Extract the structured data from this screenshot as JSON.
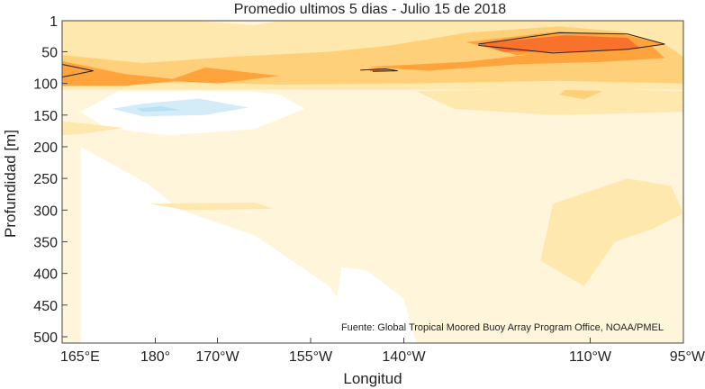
{
  "chart_data": {
    "type": "heatmap",
    "title": "Promedio ultimos 5 dias - Julio 15 de 2018",
    "xlabel": "Longitud",
    "ylabel": "Profundidad [m]",
    "source": "Fuente: Global Tropical Moored Buoy Array Program Office, NOAA/PMEL",
    "x_ticks": [
      {
        "lon": 165,
        "label": "165°E"
      },
      {
        "lon": 180,
        "label": "180°"
      },
      {
        "lon": 190,
        "label": "170°W"
      },
      {
        "lon": 205,
        "label": "155°W"
      },
      {
        "lon": 220,
        "label": "140°W"
      },
      {
        "lon": 250,
        "label": "110°W"
      },
      {
        "lon": 265,
        "label": "95°W"
      }
    ],
    "y_ticks": [
      {
        "depth": 1,
        "label": "1"
      },
      {
        "depth": 50,
        "label": "50"
      },
      {
        "depth": 100,
        "label": "100"
      },
      {
        "depth": 150,
        "label": "150"
      },
      {
        "depth": 200,
        "label": "200"
      },
      {
        "depth": 250,
        "label": "250"
      },
      {
        "depth": 300,
        "label": "300"
      },
      {
        "depth": 350,
        "label": "350"
      },
      {
        "depth": 400,
        "label": "400"
      },
      {
        "depth": 450,
        "label": "450"
      },
      {
        "depth": 500,
        "label": "500"
      }
    ],
    "xlim": [
      165,
      265
    ],
    "ylim": [
      1,
      510
    ],
    "y_reversed": true,
    "grid": false,
    "levels": [
      {
        "level": "white",
        "color": "#ffffff"
      },
      {
        "level": "pale",
        "color": "#fff5da"
      },
      {
        "level": "light",
        "color": "#ffe8ae"
      },
      {
        "level": "mid",
        "color": "#ffd07a"
      },
      {
        "level": "high",
        "color": "#ffa33c"
      },
      {
        "level": "peak",
        "color": "#f9722b"
      },
      {
        "level": "cool",
        "color": "#d3ecf8"
      },
      {
        "level": "cooler",
        "color": "#b5e1f6"
      }
    ],
    "regions": [
      {
        "level": "light",
        "points": [
          [
            165,
            1
          ],
          [
            265,
            1
          ],
          [
            265,
            110
          ],
          [
            165,
            110
          ]
        ]
      },
      {
        "level": "mid",
        "points": [
          [
            165,
            55
          ],
          [
            178,
            68
          ],
          [
            192,
            58
          ],
          [
            208,
            50
          ],
          [
            218,
            40
          ],
          [
            230,
            20
          ],
          [
            245,
            10
          ],
          [
            255,
            18
          ],
          [
            262,
            38
          ],
          [
            265,
            58
          ],
          [
            265,
            100
          ],
          [
            245,
            96
          ],
          [
            222,
            100
          ],
          [
            200,
            102
          ],
          [
            185,
            98
          ],
          [
            165,
            104
          ]
        ]
      },
      {
        "level": "light",
        "points": [
          [
            178,
            35
          ],
          [
            192,
            30
          ],
          [
            208,
            22
          ],
          [
            218,
            18
          ],
          [
            208,
            40
          ],
          [
            192,
            45
          ]
        ]
      },
      {
        "level": "high",
        "points": [
          [
            165,
            65
          ],
          [
            175,
            85
          ],
          [
            185,
            95
          ],
          [
            175,
            104
          ],
          [
            165,
            104
          ]
        ]
      },
      {
        "level": "high",
        "points": [
          [
            188,
            75
          ],
          [
            200,
            88
          ],
          [
            190,
            100
          ],
          [
            182,
            96
          ]
        ]
      },
      {
        "level": "high",
        "points": [
          [
            214,
            74
          ],
          [
            230,
            66
          ],
          [
            244,
            50
          ],
          [
            260,
            42
          ],
          [
            262,
            60
          ],
          [
            252,
            66
          ],
          [
            238,
            70
          ],
          [
            224,
            80
          ]
        ]
      },
      {
        "level": "high",
        "points": [
          [
            230,
            35
          ],
          [
            245,
            18
          ],
          [
            255,
            22
          ],
          [
            262,
            38
          ],
          [
            252,
            52
          ],
          [
            238,
            55
          ]
        ]
      },
      {
        "level": "peak",
        "points": [
          [
            232,
            37
          ],
          [
            246,
            24
          ],
          [
            256,
            28
          ],
          [
            258,
            45
          ],
          [
            248,
            50
          ],
          [
            236,
            50
          ]
        ]
      },
      {
        "level": "peak",
        "points": [
          [
            214,
            78
          ],
          [
            216,
            76
          ],
          [
            218,
            79
          ],
          [
            215,
            81
          ]
        ]
      },
      {
        "level": "light",
        "points": [
          [
            165,
            1
          ],
          [
            172,
            1
          ],
          [
            184,
            8
          ],
          [
            196,
            12
          ],
          [
            186,
            18
          ],
          [
            174,
            12
          ]
        ]
      },
      {
        "level": "pale",
        "points": [
          [
            186,
            1
          ],
          [
            200,
            1
          ],
          [
            196,
            8
          ]
        ]
      },
      {
        "level": "pale",
        "points": [
          [
            165,
            110
          ],
          [
            265,
            110
          ],
          [
            265,
            510
          ],
          [
            165,
            510
          ]
        ]
      },
      {
        "level": "white",
        "points": [
          [
            168,
            200
          ],
          [
            179,
            260
          ],
          [
            184,
            300
          ],
          [
            196,
            340
          ],
          [
            208,
            420
          ],
          [
            212,
            480
          ],
          [
            214,
            510
          ],
          [
            168,
            510
          ]
        ]
      },
      {
        "level": "white",
        "points": [
          [
            174,
            112
          ],
          [
            195,
            112
          ],
          [
            200,
            118
          ],
          [
            204,
            140
          ],
          [
            196,
            172
          ],
          [
            182,
            182
          ],
          [
            172,
            170
          ],
          [
            168,
            145
          ]
        ]
      },
      {
        "level": "white",
        "points": [
          [
            210,
            390
          ],
          [
            214,
            395
          ],
          [
            220,
            440
          ],
          [
            222,
            510
          ],
          [
            205,
            510
          ],
          [
            209,
            450
          ]
        ]
      },
      {
        "level": "cool",
        "points": [
          [
            178,
            132
          ],
          [
            187,
            124
          ],
          [
            195,
            138
          ],
          [
            188,
            150
          ],
          [
            178,
            152
          ],
          [
            173,
            140
          ]
        ]
      },
      {
        "level": "cooler",
        "points": [
          [
            177,
            140
          ],
          [
            181,
            136
          ],
          [
            184,
            142
          ],
          [
            178,
            145
          ]
        ]
      },
      {
        "level": "light",
        "points": [
          [
            222,
            112
          ],
          [
            248,
            108
          ],
          [
            265,
            112
          ],
          [
            265,
            145
          ],
          [
            244,
            150
          ],
          [
            228,
            140
          ]
        ]
      },
      {
        "level": "light",
        "points": [
          [
            165,
            160
          ],
          [
            170,
            165
          ],
          [
            175,
            170
          ],
          [
            168,
            180
          ],
          [
            165,
            182
          ]
        ]
      },
      {
        "level": "light",
        "points": [
          [
            179,
            290
          ],
          [
            196,
            288
          ],
          [
            199,
            298
          ],
          [
            185,
            300
          ]
        ]
      },
      {
        "level": "light",
        "points": [
          [
            244,
            290
          ],
          [
            256,
            250
          ],
          [
            263,
            262
          ],
          [
            265,
            305
          ],
          [
            260,
            330
          ],
          [
            254,
            350
          ],
          [
            249,
            420
          ],
          [
            242,
            380
          ]
        ]
      },
      {
        "level": "mid",
        "points": [
          [
            246,
            110
          ],
          [
            252,
            112
          ],
          [
            249,
            125
          ],
          [
            245,
            118
          ]
        ]
      }
    ],
    "contour_lines": [
      [
        [
          232,
          38
        ],
        [
          245,
          20
        ],
        [
          256,
          22
        ],
        [
          262,
          38
        ],
        [
          256,
          46
        ],
        [
          244,
          52
        ],
        [
          232,
          40
        ]
      ],
      [
        [
          165,
          70
        ],
        [
          170,
          80
        ],
        [
          165,
          90
        ]
      ],
      [
        [
          213,
          79
        ],
        [
          217,
          77
        ],
        [
          219,
          80
        ],
        [
          215,
          81
        ]
      ]
    ]
  }
}
